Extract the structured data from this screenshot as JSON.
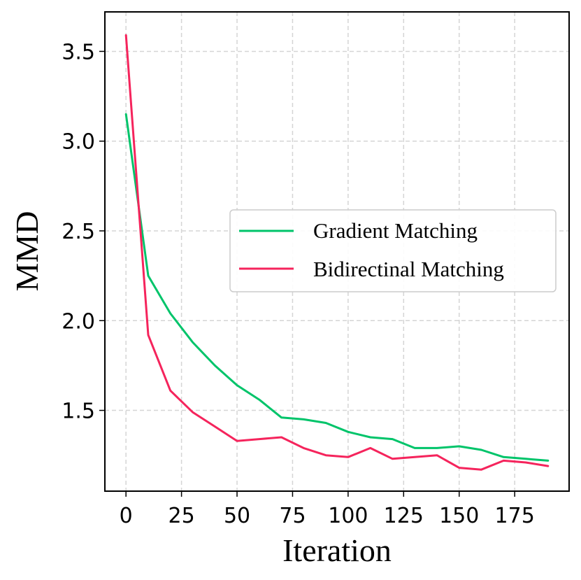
{
  "chart_data": {
    "type": "line",
    "title": "",
    "xlabel": "Iteration",
    "ylabel": "MMD",
    "xlim": [
      -9.5,
      199.5
    ],
    "ylim": [
      1.05,
      3.72
    ],
    "grid": true,
    "legend_position": "center-right",
    "x_ticks": [
      0,
      25,
      50,
      75,
      100,
      125,
      150,
      175
    ],
    "x_tick_labels": [
      "0",
      "25",
      "50",
      "75",
      "100",
      "125",
      "150",
      "175"
    ],
    "y_ticks": [
      1.5,
      2.0,
      2.5,
      3.0,
      3.5
    ],
    "y_tick_labels": [
      "1.5",
      "2.0",
      "2.5",
      "3.0",
      "3.5"
    ],
    "x": [
      0,
      10,
      20,
      30,
      40,
      50,
      60,
      70,
      80,
      90,
      100,
      110,
      120,
      130,
      140,
      150,
      160,
      170,
      180,
      190
    ],
    "series": [
      {
        "name": "Gradient Matching",
        "color": "#00c46a",
        "values": [
          3.15,
          2.25,
          2.04,
          1.88,
          1.75,
          1.64,
          1.56,
          1.46,
          1.45,
          1.43,
          1.38,
          1.35,
          1.34,
          1.29,
          1.29,
          1.3,
          1.28,
          1.24,
          1.23,
          1.22
        ]
      },
      {
        "name": "Bidirectinal Matching",
        "color": "#f5245c",
        "values": [
          3.59,
          1.92,
          1.61,
          1.49,
          1.41,
          1.33,
          1.34,
          1.35,
          1.29,
          1.25,
          1.24,
          1.29,
          1.23,
          1.24,
          1.25,
          1.18,
          1.17,
          1.22,
          1.21,
          1.19
        ]
      }
    ]
  }
}
